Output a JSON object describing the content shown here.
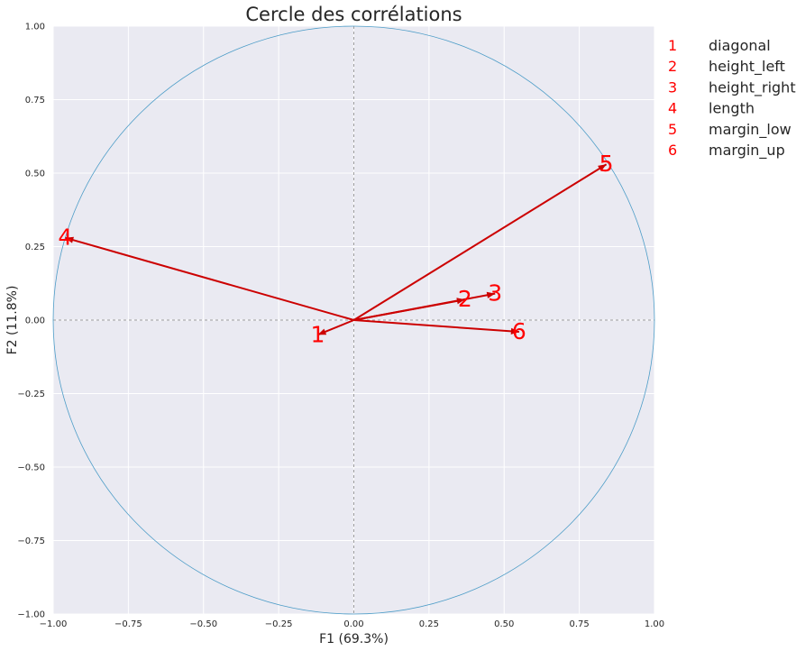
{
  "chart_data": {
    "type": "scatter",
    "title": "Cercle des corrélations",
    "xlabel": "F1 (69.3%)",
    "ylabel": "F2 (11.8%)",
    "xlim": [
      -1.0,
      1.0
    ],
    "ylim": [
      -1.0,
      1.0
    ],
    "xticks": [
      "−1.00",
      "−0.75",
      "−0.50",
      "−0.25",
      "0.00",
      "0.25",
      "0.50",
      "0.75",
      "1.00"
    ],
    "xtick_values": [
      -1.0,
      -0.75,
      -0.5,
      -0.25,
      0.0,
      0.25,
      0.5,
      0.75,
      1.0
    ],
    "yticks": [
      "−1.00",
      "−0.75",
      "−0.50",
      "−0.25",
      "0.00",
      "0.25",
      "0.50",
      "0.75",
      "1.00"
    ],
    "ytick_values": [
      -1.0,
      -0.75,
      -0.5,
      -0.25,
      0.0,
      0.25,
      0.5,
      0.75,
      1.0
    ],
    "grid": true,
    "unit_circle": true,
    "legend_placement": "right",
    "colors": {
      "background": "#eaeaf2",
      "grid": "#ffffff",
      "arrow": "#cc0000",
      "label": "#ff0000",
      "circle": "#4c9cc7",
      "zero_line": "#a0a0a0"
    },
    "vectors": [
      {
        "id": "1",
        "name": "diagonal",
        "x": -0.12,
        "y": -0.05
      },
      {
        "id": "2",
        "name": "height_left",
        "x": 0.37,
        "y": 0.07
      },
      {
        "id": "3",
        "name": "height_right",
        "x": 0.47,
        "y": 0.09
      },
      {
        "id": "4",
        "name": "length",
        "x": -0.96,
        "y": 0.28
      },
      {
        "id": "5",
        "name": "margin_low",
        "x": 0.84,
        "y": 0.53
      },
      {
        "id": "6",
        "name": "margin_up",
        "x": 0.55,
        "y": -0.04
      }
    ]
  }
}
